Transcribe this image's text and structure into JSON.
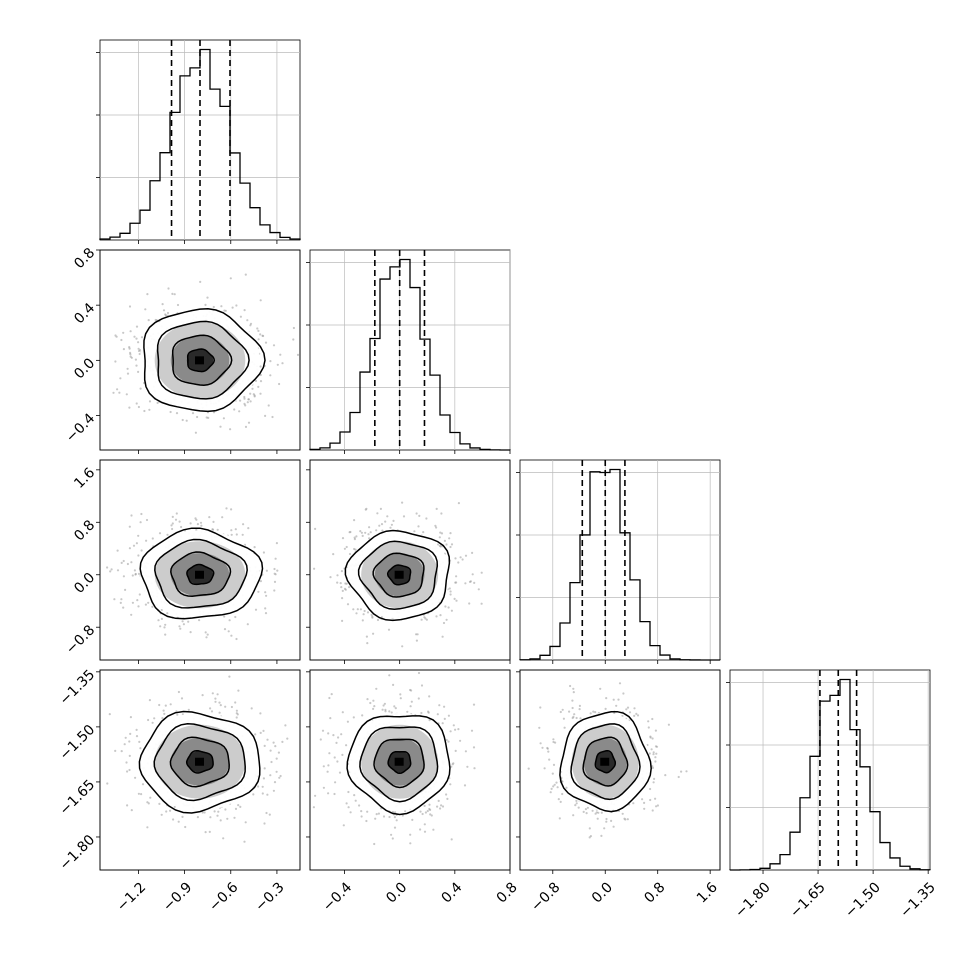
{
  "chart_data": {
    "type": "corner",
    "grid": true,
    "quantile_lines": "dashed",
    "variables": [
      {
        "range": [
          -1.45,
          -0.15
        ],
        "ticks": [
          -1.2,
          -0.9,
          -0.6,
          -0.3
        ],
        "tick_labels": [
          "−1.2",
          "−0.9",
          "−0.6",
          "−0.3"
        ],
        "mean": -0.8,
        "sd": 0.19,
        "quantiles": [
          -0.985,
          -0.8,
          -0.605
        ]
      },
      {
        "range": [
          -0.65,
          0.8
        ],
        "ticks": [
          -0.4,
          0.0,
          0.4,
          0.8
        ],
        "tick_labels": [
          "−0.4",
          "0.0",
          "0.4",
          "0.8"
        ],
        "mean": 0.0,
        "sd": 0.18,
        "quantiles": [
          -0.18,
          0.0,
          0.18
        ]
      },
      {
        "range": [
          -1.3,
          1.75
        ],
        "ticks": [
          -0.8,
          0.0,
          0.8,
          1.6
        ],
        "tick_labels": [
          "−0.8",
          "0.0",
          "0.8",
          "1.6"
        ],
        "mean": 0.0,
        "sd": 0.33,
        "quantiles": [
          -0.35,
          0.0,
          0.3
        ]
      },
      {
        "range": [
          -1.89,
          -1.345
        ],
        "ticks": [
          -1.8,
          -1.65,
          -1.5,
          -1.35
        ],
        "tick_labels": [
          "−1.80",
          "−1.65",
          "−1.50",
          "−1.35"
        ],
        "mean": -1.595,
        "sd": 0.065,
        "quantiles": [
          -1.645,
          -1.595,
          -1.545
        ]
      }
    ],
    "histogram_bins": 20
  }
}
